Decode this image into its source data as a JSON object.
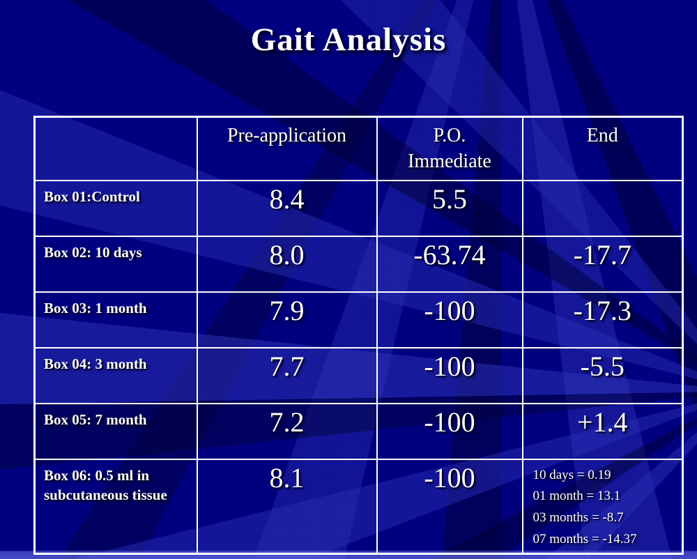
{
  "slide": {
    "title": "Gait Analysis"
  },
  "table": {
    "headers": [
      "",
      "Pre-application",
      "P.O.\nImmediate",
      "End"
    ],
    "rows": [
      {
        "label": "Box 01:Control",
        "pre_application": "8.4",
        "po_immediate": "5.5",
        "end": ""
      },
      {
        "label": "Box 02: 10 days",
        "pre_application": "8.0",
        "po_immediate": "-63.74",
        "end": "-17.7"
      },
      {
        "label": "Box 03: 1 month",
        "pre_application": "7.9",
        "po_immediate": "-100",
        "end": "-17.3"
      },
      {
        "label": "Box 04: 3 month",
        "pre_application": "7.7",
        "po_immediate": "-100",
        "end": "-5.5"
      },
      {
        "label": "Box 05: 7 month",
        "pre_application": "7.2",
        "po_immediate": "-100",
        "end": "+1.4"
      },
      {
        "label": "Box 06: 0.5 ml in subcutaneous tissue",
        "pre_application": "8.1",
        "po_immediate": "-100",
        "end": "10 days = 0.19\n01 month = 13.1\n03 months = -8.7\n07 months = -14.37"
      }
    ]
  },
  "colors": {
    "background_base": "#010180",
    "ray_light": "#2c30b2",
    "ray_dark": "#000037",
    "bottom_band": "#5f69e1",
    "table_border": "#ffffff",
    "text": "#ffffff"
  }
}
